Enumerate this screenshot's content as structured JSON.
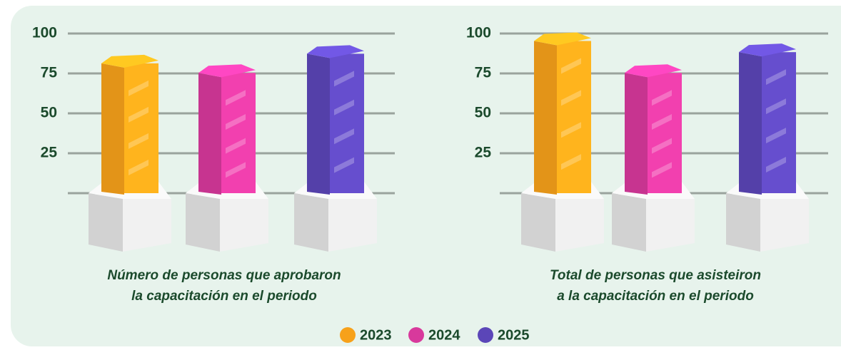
{
  "chart_data": [
    {
      "type": "bar",
      "title": [
        "Número de personas que aprobaron",
        "la capacitación en el periodo"
      ],
      "values": [
        84,
        78,
        90
      ],
      "ylim": [
        0,
        100
      ],
      "yticks": [
        25,
        50,
        75,
        100
      ],
      "grid": true
    },
    {
      "type": "bar",
      "title": [
        "Total de personas que asisteiron",
        "a la capacitación en el periodo"
      ],
      "values": [
        98,
        78,
        91
      ],
      "ylim": [
        0,
        100
      ],
      "yticks": [
        25,
        50,
        75,
        100
      ],
      "grid": true
    }
  ],
  "legend": {
    "items": [
      "2023",
      "2024",
      "2025"
    ],
    "colors": [
      "#f7a11a",
      "#d8399c",
      "#5b46b8"
    ]
  }
}
